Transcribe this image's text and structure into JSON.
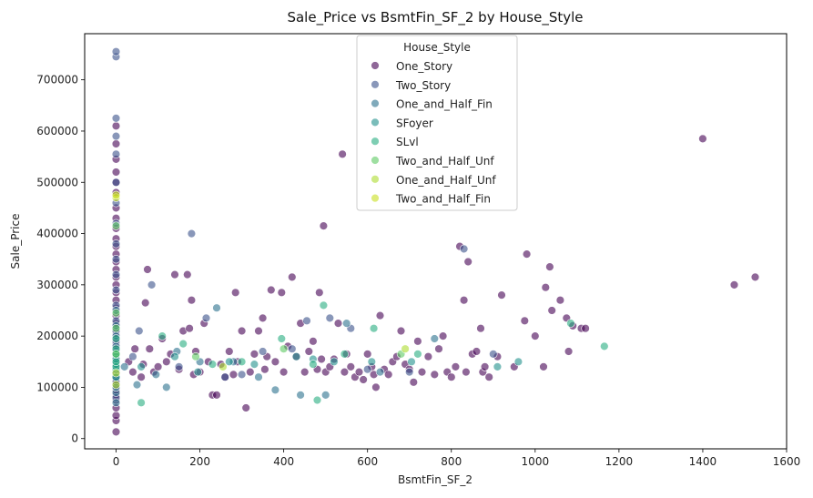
{
  "chart_data": {
    "type": "scatter",
    "title": "Sale_Price vs BsmtFin_SF_2 by House_Style",
    "xlabel": "BsmtFin_SF_2",
    "ylabel": "Sale_Price",
    "xlim": [
      -75,
      1600
    ],
    "ylim": [
      -20000,
      790000
    ],
    "xticks": [
      0,
      200,
      400,
      600,
      800,
      1000,
      1200,
      1400,
      1600
    ],
    "yticks": [
      0,
      100000,
      200000,
      300000,
      400000,
      500000,
      600000,
      700000
    ],
    "grid": false,
    "legend": {
      "title": "House_Style",
      "placement": "top-center",
      "entries": [
        "One_Story",
        "Two_Story",
        "One_and_Half_Fin",
        "SFoyer",
        "SLvl",
        "Two_and_Half_Unf",
        "One_and_Half_Unf",
        "Two_and_Half_Fin"
      ]
    },
    "colors": {
      "One_Story": "#440154",
      "Two_Story": "#3b528b",
      "One_and_Half_Fin": "#2c728e",
      "SFoyer": "#21918c",
      "SLvl": "#28ae80",
      "Two_and_Half_Unf": "#5ec962",
      "One_and_Half_Unf": "#addc30",
      "Two_and_Half_Fin": "#c8e020"
    },
    "series": [
      {
        "name": "One_Story",
        "points": [
          [
            0,
            13000
          ],
          [
            0,
            35000
          ],
          [
            0,
            45000
          ],
          [
            0,
            60000
          ],
          [
            0,
            75000
          ],
          [
            0,
            85000
          ],
          [
            0,
            95000
          ],
          [
            0,
            105000
          ],
          [
            0,
            115000
          ],
          [
            0,
            125000
          ],
          [
            0,
            135000
          ],
          [
            0,
            145000
          ],
          [
            0,
            155000
          ],
          [
            0,
            165000
          ],
          [
            0,
            175000
          ],
          [
            0,
            185000
          ],
          [
            0,
            195000
          ],
          [
            0,
            205000
          ],
          [
            0,
            215000
          ],
          [
            0,
            225000
          ],
          [
            0,
            240000
          ],
          [
            0,
            255000
          ],
          [
            0,
            270000
          ],
          [
            0,
            285000
          ],
          [
            0,
            300000
          ],
          [
            0,
            315000
          ],
          [
            0,
            330000
          ],
          [
            0,
            345000
          ],
          [
            0,
            360000
          ],
          [
            0,
            375000
          ],
          [
            0,
            390000
          ],
          [
            0,
            410000
          ],
          [
            0,
            430000
          ],
          [
            0,
            450000
          ],
          [
            0,
            480000
          ],
          [
            0,
            500000
          ],
          [
            0,
            520000
          ],
          [
            0,
            545000
          ],
          [
            0,
            575000
          ],
          [
            0,
            610000
          ],
          [
            30,
            150000
          ],
          [
            40,
            130000
          ],
          [
            45,
            175000
          ],
          [
            60,
            120000
          ],
          [
            65,
            145000
          ],
          [
            70,
            265000
          ],
          [
            75,
            330000
          ],
          [
            80,
            175000
          ],
          [
            90,
            130000
          ],
          [
            100,
            140000
          ],
          [
            110,
            195000
          ],
          [
            120,
            150000
          ],
          [
            130,
            165000
          ],
          [
            140,
            320000
          ],
          [
            150,
            135000
          ],
          [
            160,
            210000
          ],
          [
            170,
            320000
          ],
          [
            175,
            215000
          ],
          [
            180,
            270000
          ],
          [
            185,
            125000
          ],
          [
            190,
            170000
          ],
          [
            200,
            130000
          ],
          [
            210,
            225000
          ],
          [
            220,
            150000
          ],
          [
            230,
            85000
          ],
          [
            240,
            85000
          ],
          [
            250,
            145000
          ],
          [
            260,
            120000
          ],
          [
            270,
            170000
          ],
          [
            280,
            125000
          ],
          [
            285,
            285000
          ],
          [
            290,
            150000
          ],
          [
            300,
            210000
          ],
          [
            310,
            60000
          ],
          [
            320,
            130000
          ],
          [
            330,
            165000
          ],
          [
            340,
            210000
          ],
          [
            350,
            235000
          ],
          [
            355,
            135000
          ],
          [
            360,
            160000
          ],
          [
            370,
            290000
          ],
          [
            380,
            150000
          ],
          [
            395,
            285000
          ],
          [
            400,
            130000
          ],
          [
            410,
            180000
          ],
          [
            420,
            315000
          ],
          [
            430,
            160000
          ],
          [
            440,
            225000
          ],
          [
            450,
            130000
          ],
          [
            460,
            170000
          ],
          [
            470,
            190000
          ],
          [
            480,
            135000
          ],
          [
            485,
            285000
          ],
          [
            490,
            155000
          ],
          [
            495,
            415000
          ],
          [
            500,
            130000
          ],
          [
            510,
            140000
          ],
          [
            520,
            155000
          ],
          [
            530,
            225000
          ],
          [
            540,
            555000
          ],
          [
            545,
            130000
          ],
          [
            550,
            165000
          ],
          [
            560,
            140000
          ],
          [
            570,
            120000
          ],
          [
            580,
            130000
          ],
          [
            590,
            115000
          ],
          [
            600,
            165000
          ],
          [
            610,
            140000
          ],
          [
            615,
            125000
          ],
          [
            620,
            100000
          ],
          [
            630,
            240000
          ],
          [
            640,
            135000
          ],
          [
            650,
            125000
          ],
          [
            660,
            150000
          ],
          [
            670,
            160000
          ],
          [
            680,
            210000
          ],
          [
            690,
            145000
          ],
          [
            700,
            135000
          ],
          [
            710,
            110000
          ],
          [
            720,
            190000
          ],
          [
            730,
            130000
          ],
          [
            745,
            160000
          ],
          [
            760,
            125000
          ],
          [
            770,
            175000
          ],
          [
            780,
            200000
          ],
          [
            790,
            130000
          ],
          [
            800,
            120000
          ],
          [
            810,
            140000
          ],
          [
            820,
            375000
          ],
          [
            830,
            270000
          ],
          [
            835,
            130000
          ],
          [
            840,
            345000
          ],
          [
            850,
            165000
          ],
          [
            860,
            170000
          ],
          [
            870,
            215000
          ],
          [
            875,
            130000
          ],
          [
            880,
            140000
          ],
          [
            890,
            120000
          ],
          [
            910,
            160000
          ],
          [
            920,
            280000
          ],
          [
            950,
            140000
          ],
          [
            975,
            230000
          ],
          [
            980,
            360000
          ],
          [
            1000,
            200000
          ],
          [
            1020,
            140000
          ],
          [
            1025,
            295000
          ],
          [
            1035,
            335000
          ],
          [
            1040,
            250000
          ],
          [
            1060,
            270000
          ],
          [
            1075,
            235000
          ],
          [
            1080,
            170000
          ],
          [
            1090,
            220000
          ],
          [
            1110,
            215000
          ],
          [
            1120,
            215000
          ],
          [
            1400,
            585000
          ],
          [
            1475,
            300000
          ],
          [
            1525,
            315000
          ]
        ]
      },
      {
        "name": "Two_Story",
        "points": [
          [
            0,
            80000
          ],
          [
            0,
            110000
          ],
          [
            0,
            130000
          ],
          [
            0,
            150000
          ],
          [
            0,
            170000
          ],
          [
            0,
            190000
          ],
          [
            0,
            210000
          ],
          [
            0,
            230000
          ],
          [
            0,
            260000
          ],
          [
            0,
            290000
          ],
          [
            0,
            320000
          ],
          [
            0,
            350000
          ],
          [
            0,
            380000
          ],
          [
            0,
            420000
          ],
          [
            0,
            460000
          ],
          [
            0,
            500000
          ],
          [
            0,
            555000
          ],
          [
            0,
            590000
          ],
          [
            0,
            625000
          ],
          [
            0,
            745000
          ],
          [
            0,
            755000
          ],
          [
            40,
            160000
          ],
          [
            55,
            210000
          ],
          [
            85,
            300000
          ],
          [
            150,
            140000
          ],
          [
            180,
            400000
          ],
          [
            215,
            235000
          ],
          [
            260,
            120000
          ],
          [
            300,
            125000
          ],
          [
            350,
            170000
          ],
          [
            420,
            175000
          ],
          [
            455,
            230000
          ],
          [
            510,
            235000
          ],
          [
            560,
            215000
          ],
          [
            600,
            135000
          ],
          [
            700,
            130000
          ],
          [
            830,
            370000
          ],
          [
            900,
            165000
          ]
        ]
      },
      {
        "name": "One_and_Half_Fin",
        "points": [
          [
            0,
            70000
          ],
          [
            0,
            90000
          ],
          [
            0,
            100000
          ],
          [
            0,
            120000
          ],
          [
            0,
            140000
          ],
          [
            0,
            160000
          ],
          [
            0,
            180000
          ],
          [
            0,
            200000
          ],
          [
            0,
            220000
          ],
          [
            0,
            250000
          ],
          [
            20,
            140000
          ],
          [
            50,
            105000
          ],
          [
            95,
            125000
          ],
          [
            120,
            100000
          ],
          [
            145,
            170000
          ],
          [
            200,
            150000
          ],
          [
            240,
            255000
          ],
          [
            280,
            150000
          ],
          [
            340,
            120000
          ],
          [
            380,
            95000
          ],
          [
            440,
            85000
          ],
          [
            500,
            85000
          ],
          [
            550,
            225000
          ],
          [
            630,
            130000
          ],
          [
            760,
            195000
          ]
        ]
      },
      {
        "name": "SFoyer",
        "points": [
          [
            0,
            120000
          ],
          [
            0,
            135000
          ],
          [
            0,
            145000
          ],
          [
            0,
            155000
          ],
          [
            60,
            140000
          ],
          [
            140,
            160000
          ],
          [
            195,
            130000
          ],
          [
            270,
            150000
          ],
          [
            330,
            145000
          ],
          [
            430,
            160000
          ],
          [
            470,
            155000
          ],
          [
            520,
            150000
          ],
          [
            610,
            150000
          ],
          [
            705,
            150000
          ],
          [
            910,
            140000
          ],
          [
            960,
            150000
          ]
        ]
      },
      {
        "name": "SLvl",
        "points": [
          [
            0,
            140000
          ],
          [
            0,
            150000
          ],
          [
            0,
            165000
          ],
          [
            0,
            175000
          ],
          [
            0,
            195000
          ],
          [
            60,
            70000
          ],
          [
            110,
            200000
          ],
          [
            160,
            185000
          ],
          [
            230,
            145000
          ],
          [
            300,
            150000
          ],
          [
            395,
            195000
          ],
          [
            470,
            145000
          ],
          [
            480,
            75000
          ],
          [
            495,
            260000
          ],
          [
            545,
            165000
          ],
          [
            615,
            215000
          ],
          [
            720,
            165000
          ],
          [
            1085,
            225000
          ],
          [
            1165,
            180000
          ]
        ]
      },
      {
        "name": "Two_and_Half_Unf",
        "points": [
          [
            0,
            165000
          ],
          [
            0,
            215000
          ],
          [
            0,
            245000
          ],
          [
            0,
            415000
          ],
          [
            190,
            160000
          ],
          [
            400,
            175000
          ],
          [
            680,
            165000
          ]
        ]
      },
      {
        "name": "One_and_Half_Unf",
        "points": [
          [
            0,
            105000
          ],
          [
            0,
            128000
          ],
          [
            255,
            140000
          ],
          [
            690,
            175000
          ]
        ]
      },
      {
        "name": "Two_and_Half_Fin",
        "points": [
          [
            0,
            470000
          ],
          [
            0,
            475000
          ]
        ]
      }
    ]
  }
}
